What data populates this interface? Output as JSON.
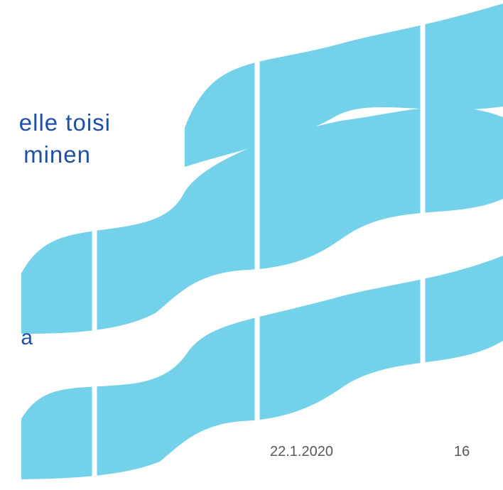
{
  "slide": {
    "title_lines": [
      "elle toisi",
      "minen"
    ],
    "body_fragment": "a",
    "footer": {
      "date": "22.1.2020",
      "page_number": "16"
    }
  },
  "colors": {
    "title_text": "#1f4fa6",
    "footer_text": "#595959",
    "wave_fill": "#73d1ea",
    "background": "#ffffff"
  },
  "decoration": {
    "rows": 3,
    "tiles_per_row": 4,
    "icon": "wave-tile-pattern"
  }
}
